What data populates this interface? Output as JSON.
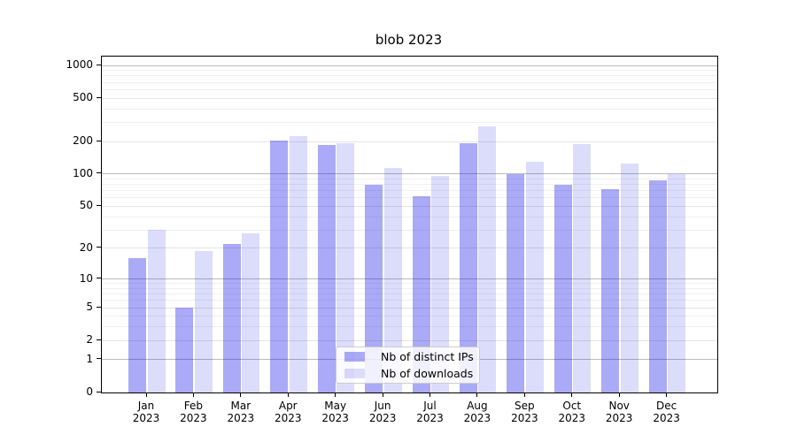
{
  "chart_data": {
    "type": "bar",
    "title": "blob 2023",
    "months": [
      "Jan",
      "Feb",
      "Mar",
      "Apr",
      "May",
      "Jun",
      "Jul",
      "Aug",
      "Sep",
      "Oct",
      "Nov",
      "Dec"
    ],
    "year": "2023",
    "categories": [
      "Jan 2023",
      "Feb 2023",
      "Mar 2023",
      "Apr 2023",
      "May 2023",
      "Jun 2023",
      "Jul 2023",
      "Aug 2023",
      "Sep 2023",
      "Oct 2023",
      "Nov 2023",
      "Dec 2023"
    ],
    "series": [
      {
        "name": "Nb of distinct IPs",
        "color": "rgba(5,5,230,0.34)",
        "values": [
          16,
          5,
          22,
          203,
          185,
          79,
          62,
          193,
          100,
          80,
          72,
          87
        ]
      },
      {
        "name": "Nb of downloads",
        "color": "rgba(5,5,230,0.14)",
        "values": [
          30,
          19,
          28,
          225,
          192,
          115,
          96,
          275,
          131,
          190,
          126,
          100
        ]
      }
    ],
    "yscale": "log1p",
    "y_major_ticks": [
      0,
      1,
      2,
      5,
      10,
      20,
      50,
      100,
      200,
      500,
      1000
    ],
    "ylim": [
      0,
      1207
    ],
    "xlabel": "",
    "ylabel": "",
    "grid": {
      "decade_lines": [
        1,
        10,
        100,
        1000
      ],
      "mid_lines": [
        2,
        5,
        20,
        50,
        200,
        500
      ],
      "minor_lines": [
        3,
        4,
        6,
        7,
        8,
        9,
        30,
        40,
        60,
        70,
        80,
        90,
        300,
        400,
        600,
        700,
        800,
        900
      ],
      "decade_color": "#bbbbbb",
      "mid_color": "#e4e4e4",
      "minor_color": "#f0f0f0"
    },
    "legend_position": "lower center"
  },
  "legend": {
    "items": [
      {
        "label": "Nb of distinct IPs"
      },
      {
        "label": "Nb of downloads"
      }
    ]
  }
}
